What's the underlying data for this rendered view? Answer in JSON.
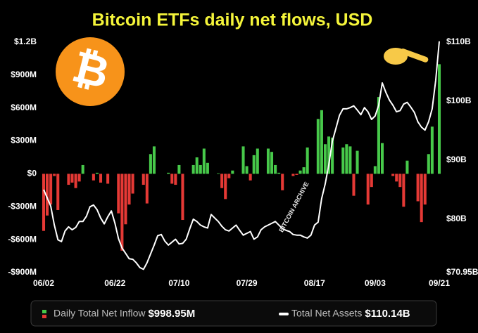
{
  "chart_data": {
    "type": "bar",
    "title": "Bitcoin ETFs daily net flows, USD",
    "logo": "₿",
    "watermark": "BITCOIN ARCHIVE",
    "grid": false,
    "categories": [
      "06/02",
      null,
      null,
      null,
      null,
      null,
      null,
      null,
      null,
      null,
      null,
      null,
      null,
      null,
      null,
      null,
      null,
      null,
      null,
      null,
      "06/22",
      null,
      null,
      null,
      null,
      null,
      null,
      null,
      null,
      null,
      null,
      null,
      null,
      null,
      null,
      null,
      null,
      null,
      "07/10",
      null,
      null,
      null,
      null,
      null,
      null,
      null,
      null,
      null,
      null,
      null,
      null,
      null,
      null,
      null,
      null,
      null,
      null,
      "07/29",
      null,
      null,
      null,
      null,
      null,
      null,
      null,
      null,
      null,
      null,
      null,
      null,
      null,
      null,
      null,
      null,
      null,
      null,
      "08/17",
      null,
      null,
      null,
      null,
      null,
      null,
      null,
      null,
      null,
      null,
      null,
      null,
      null,
      null,
      null,
      null,
      "09/03",
      null,
      null,
      null,
      null,
      null,
      null,
      null,
      null,
      null,
      null,
      null,
      null,
      null,
      null,
      null,
      null,
      null,
      "09/21"
    ],
    "ylim": [
      -900,
      1200
    ],
    "yticks": [
      {
        "value": 1200,
        "label": "$1.2B"
      },
      {
        "value": 900,
        "label": "$900M"
      },
      {
        "value": 600,
        "label": "$600M"
      },
      {
        "value": 300,
        "label": "$300M"
      },
      {
        "value": 0,
        "label": "$0"
      },
      {
        "value": -300,
        "label": "-$300M"
      },
      {
        "value": -600,
        "label": "-$600M"
      },
      {
        "value": -900,
        "label": "-$900M"
      }
    ],
    "y2lim": [
      70.95,
      110
    ],
    "y2ticks": [
      {
        "value": 110,
        "label": "$110B"
      },
      {
        "value": 100,
        "label": "$100B"
      },
      {
        "value": 90,
        "label": "$90B"
      },
      {
        "value": 80,
        "label": "$80B"
      },
      {
        "value": 70.95,
        "label": "$70.95B"
      }
    ],
    "series": [
      {
        "name": "Daily Total Net Inflow",
        "type": "bar",
        "axis": "y",
        "color": "#47c94a",
        "negative_color": "#e53935",
        "latest_label": "$998.95M",
        "values": [
          -520,
          -380,
          -280,
          -20,
          -330,
          null,
          null,
          -100,
          -80,
          -130,
          -70,
          80,
          null,
          null,
          -60,
          10,
          -80,
          null,
          -90,
          null,
          null,
          -360,
          -700,
          -460,
          -280,
          -180,
          null,
          null,
          -100,
          -270,
          180,
          250,
          null,
          null,
          null,
          10,
          -90,
          -100,
          80,
          -420,
          null,
          null,
          80,
          150,
          80,
          230,
          100,
          null,
          null,
          5,
          -130,
          -230,
          -40,
          30,
          null,
          null,
          250,
          70,
          -60,
          170,
          230,
          null,
          null,
          230,
          200,
          80,
          10,
          -150,
          null,
          null,
          -20,
          -10,
          30,
          60,
          240,
          null,
          null,
          500,
          580,
          270,
          340,
          330,
          null,
          null,
          240,
          270,
          250,
          -200,
          210,
          null,
          null,
          -280,
          -120,
          70,
          700,
          280,
          null,
          null,
          -20,
          -70,
          -120,
          -300,
          120,
          null,
          null,
          -250,
          -440,
          -280,
          180,
          430,
          null,
          998.95
        ]
      },
      {
        "name": "Total Net Assets",
        "type": "line",
        "axis": "y2",
        "color": "#ffffff",
        "latest_label": "$110.14B",
        "values": [
          85.0,
          83.6,
          82.2,
          79.0,
          76.5,
          76.2,
          78.0,
          78.7,
          78.2,
          78.6,
          79.6,
          79.6,
          80.5,
          82.1,
          82.4,
          81.6,
          80.2,
          79.2,
          80.4,
          81.4,
          79.3,
          76.7,
          75.1,
          74.2,
          73.3,
          73.2,
          72.6,
          71.8,
          71.5,
          72.6,
          74.1,
          75.6,
          77.2,
          77.4,
          76.3,
          75.6,
          76.1,
          76.6,
          75.8,
          75.9,
          76.6,
          78.4,
          80.0,
          79.6,
          79.0,
          78.7,
          78.5,
          80.8,
          80.2,
          79.6,
          78.8,
          78.2,
          78.0,
          78.5,
          79.0,
          78.1,
          77.3,
          77.6,
          77.9,
          76.6,
          77.0,
          78.2,
          78.7,
          79.0,
          79.3,
          79.6,
          79.0,
          78.4,
          78.1,
          77.9,
          77.4,
          77.3,
          77.3,
          77.0,
          76.8,
          77.3,
          79.0,
          79.5,
          83.5,
          86.0,
          89.2,
          93.2,
          95.4,
          97.6,
          98.7,
          98.7,
          98.9,
          99.2,
          98.5,
          97.7,
          98.9,
          98.2,
          96.9,
          97.5,
          99.3,
          103.1,
          101.5,
          100.2,
          99.3,
          98.2,
          98.4,
          99.5,
          99.8,
          99.0,
          98.1,
          96.5,
          95.6,
          95.1,
          96.5,
          98.7,
          103.5,
          110.14
        ]
      }
    ]
  }
}
